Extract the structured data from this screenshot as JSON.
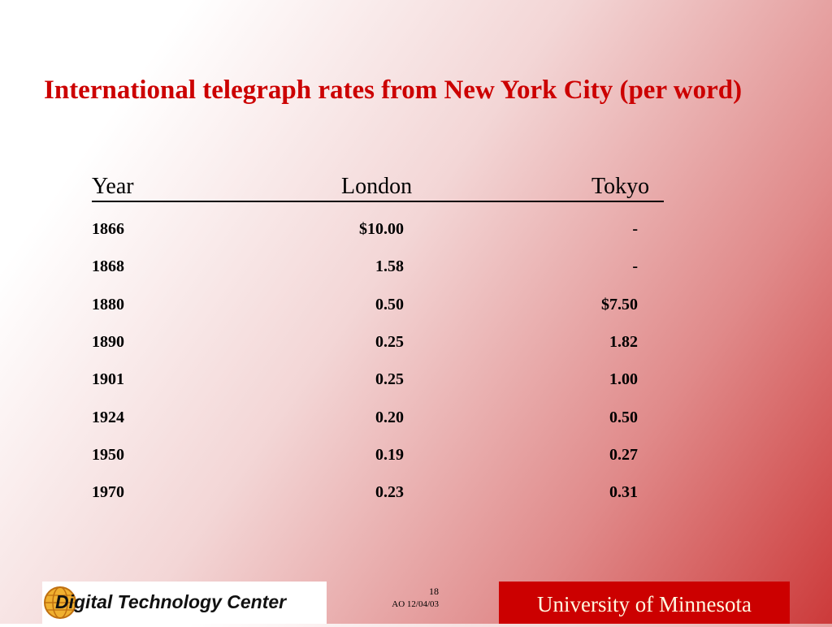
{
  "title": "International telegraph rates from New York City (per word)",
  "table": {
    "header": [
      "Year",
      "London",
      "Tokyo"
    ],
    "rows": [
      [
        "1866",
        "$10.00",
        "-"
      ],
      [
        "1868",
        "1.58",
        "-"
      ],
      [
        "1880",
        "0.50",
        "$7.50"
      ],
      [
        "1890",
        "0.25",
        "1.82"
      ],
      [
        "1901",
        "0.25",
        "1.00"
      ],
      [
        "1924",
        "0.20",
        "0.50"
      ],
      [
        "1950",
        "0.19",
        "0.27"
      ],
      [
        "1970",
        "0.23",
        "0.31"
      ]
    ]
  },
  "footer": {
    "logo": "Digital Technology Center",
    "page": "18",
    "note": "AO 12/04/03",
    "university": "University of Minnesota"
  }
}
